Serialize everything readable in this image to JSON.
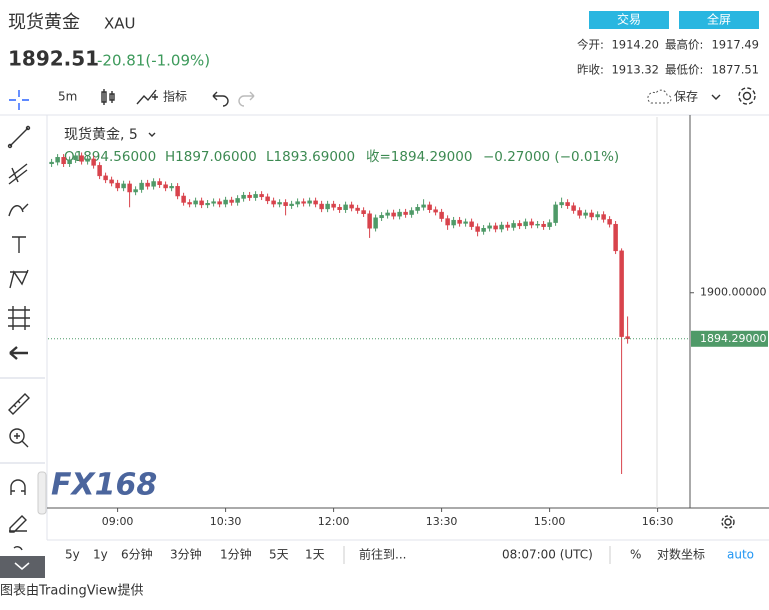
{
  "ui": {
    "title": "现货黄金",
    "symbol": "XAU",
    "price": "1892.51",
    "change": "-20.81(-1.09%)",
    "buttons": [
      "交易",
      "全屏"
    ],
    "stats": [
      [
        "今开:",
        "1914.20",
        "最高价:",
        "1917.49"
      ],
      [
        "昨收:",
        "1913.32",
        "最低价:",
        "1877.51"
      ]
    ],
    "toolbar": {
      "interval": "5m",
      "indicators": "指标",
      "save": "保存"
    },
    "legend": {
      "name": "现货黄金, 5",
      "ohlc": [
        "O1894.56000",
        "H1897.06000",
        "L1893.69000",
        "收=1894.29000",
        "−0.27000 (−0.01%)"
      ]
    },
    "ranges": [
      "5y",
      "1y",
      "6分钟",
      "3分钟",
      "1分钟",
      "5天",
      "1天"
    ],
    "goto": "前往到...",
    "clock": "08:07:00 (UTC)",
    "percent": "%",
    "log": "对数坐标",
    "auto": "auto",
    "watermark": "FX168",
    "footer": "图表由TradingView提供"
  },
  "chart_data": {
    "type": "candlestick",
    "up_color": "#4f9a68",
    "down_color": "#d8434c",
    "xlim": [
      482,
      1017
    ],
    "xticks": [
      {
        "value": 540,
        "label": "09:00"
      },
      {
        "value": 630,
        "label": "10:30"
      },
      {
        "value": 720,
        "label": "12:00"
      },
      {
        "value": 810,
        "label": "13:30"
      },
      {
        "value": 900,
        "label": "15:00"
      },
      {
        "value": 990,
        "label": "16:30"
      }
    ],
    "ylim": [
      1873.3,
      1921.8
    ],
    "yticks": [
      {
        "value": 1900,
        "label": "1900.00000"
      }
    ],
    "last_price": {
      "value": 1894.29,
      "label": "1894.29000"
    },
    "x": [
      485,
      490,
      495,
      500,
      505,
      510,
      515,
      520,
      525,
      530,
      535,
      540,
      545,
      550,
      555,
      560,
      565,
      570,
      575,
      580,
      585,
      590,
      595,
      600,
      605,
      610,
      615,
      620,
      625,
      630,
      635,
      640,
      645,
      650,
      655,
      660,
      665,
      670,
      675,
      680,
      685,
      690,
      695,
      700,
      705,
      710,
      715,
      720,
      725,
      730,
      735,
      740,
      745,
      750,
      755,
      760,
      765,
      770,
      775,
      780,
      785,
      790,
      795,
      800,
      805,
      810,
      815,
      820,
      825,
      830,
      835,
      840,
      845,
      850,
      855,
      860,
      865,
      870,
      875,
      880,
      885,
      890,
      895,
      900,
      905,
      910,
      915,
      920,
      925,
      930,
      935,
      940,
      945,
      950,
      955,
      960,
      965
    ],
    "open": [
      1916.0,
      1916.2,
      1916.8,
      1916.0,
      1916.5,
      1917.0,
      1916.3,
      1916.6,
      1915.8,
      1914.5,
      1914.0,
      1913.6,
      1913.0,
      1913.5,
      1912.5,
      1912.8,
      1913.6,
      1913.2,
      1913.8,
      1913.4,
      1913.0,
      1913.2,
      1912.0,
      1911.2,
      1911.0,
      1911.4,
      1910.9,
      1911.1,
      1911.3,
      1911.0,
      1911.5,
      1911.2,
      1911.7,
      1912.1,
      1911.8,
      1912.2,
      1911.9,
      1911.4,
      1911.0,
      1911.2,
      1910.8,
      1911.0,
      1911.3,
      1911.1,
      1911.4,
      1911.0,
      1910.4,
      1911.0,
      1910.6,
      1910.3,
      1910.9,
      1910.5,
      1910.2,
      1909.8,
      1908.0,
      1909.3,
      1909.6,
      1909.9,
      1909.5,
      1910.0,
      1909.7,
      1910.2,
      1910.6,
      1910.9,
      1910.3,
      1910.0,
      1909.2,
      1908.4,
      1909.0,
      1908.6,
      1908.8,
      1908.2,
      1907.6,
      1908.0,
      1908.3,
      1907.9,
      1908.4,
      1908.1,
      1908.6,
      1908.3,
      1908.8,
      1908.4,
      1908.5,
      1908.2,
      1908.7,
      1910.9,
      1911.2,
      1910.8,
      1910.2,
      1909.6,
      1909.9,
      1909.4,
      1909.7,
      1909.1,
      1908.5,
      1905.2,
      1894.56
    ],
    "high": [
      1916.6,
      1917.2,
      1917.2,
      1916.9,
      1917.4,
      1917.4,
      1917.0,
      1917.0,
      1916.2,
      1914.9,
      1914.4,
      1914.0,
      1913.9,
      1913.9,
      1913.2,
      1914.0,
      1914.0,
      1914.2,
      1914.2,
      1913.8,
      1913.6,
      1913.6,
      1912.4,
      1911.6,
      1911.8,
      1911.8,
      1911.5,
      1911.7,
      1911.7,
      1911.9,
      1911.9,
      1912.1,
      1912.5,
      1912.5,
      1912.6,
      1912.6,
      1912.3,
      1911.8,
      1911.6,
      1911.6,
      1911.4,
      1911.7,
      1911.7,
      1911.8,
      1911.8,
      1911.4,
      1911.4,
      1911.4,
      1911.0,
      1911.3,
      1911.3,
      1910.9,
      1910.6,
      1910.2,
      1909.7,
      1910.0,
      1910.3,
      1910.3,
      1910.4,
      1910.4,
      1910.6,
      1911.0,
      1911.6,
      1911.3,
      1910.7,
      1910.4,
      1909.6,
      1909.4,
      1909.4,
      1909.2,
      1909.2,
      1908.6,
      1908.4,
      1908.7,
      1908.7,
      1908.8,
      1908.8,
      1909.0,
      1909.0,
      1909.2,
      1909.2,
      1908.9,
      1908.9,
      1909.1,
      1911.3,
      1911.8,
      1911.6,
      1911.2,
      1910.6,
      1910.3,
      1910.3,
      1910.1,
      1910.1,
      1909.5,
      1908.9,
      1905.5,
      1897.06
    ],
    "low": [
      1915.6,
      1915.8,
      1915.6,
      1915.6,
      1916.1,
      1915.9,
      1915.9,
      1915.4,
      1914.1,
      1913.6,
      1913.2,
      1912.6,
      1912.6,
      1910.6,
      1912.1,
      1912.4,
      1912.8,
      1912.8,
      1913.0,
      1912.6,
      1912.6,
      1911.6,
      1910.8,
      1910.6,
      1910.6,
      1910.5,
      1910.5,
      1910.7,
      1910.6,
      1910.6,
      1910.8,
      1910.8,
      1911.3,
      1911.4,
      1911.4,
      1911.5,
      1911.0,
      1910.6,
      1910.6,
      1909.6,
      1910.4,
      1910.6,
      1910.7,
      1910.7,
      1910.6,
      1910.0,
      1910.0,
      1910.2,
      1909.9,
      1909.9,
      1910.1,
      1909.8,
      1909.4,
      1906.8,
      1907.6,
      1908.9,
      1909.2,
      1909.1,
      1909.1,
      1909.3,
      1909.3,
      1909.8,
      1910.2,
      1909.9,
      1909.6,
      1908.8,
      1907.8,
      1908.0,
      1908.2,
      1908.2,
      1907.8,
      1907.0,
      1907.2,
      1907.6,
      1907.5,
      1907.5,
      1907.7,
      1907.7,
      1907.9,
      1907.9,
      1908.0,
      1908.0,
      1907.8,
      1907.8,
      1908.3,
      1910.5,
      1910.4,
      1909.8,
      1909.2,
      1909.2,
      1909.0,
      1909.0,
      1908.7,
      1908.1,
      1904.8,
      1877.51,
      1893.69
    ],
    "close": [
      1916.2,
      1916.8,
      1916.0,
      1916.5,
      1917.0,
      1916.3,
      1916.6,
      1915.8,
      1914.5,
      1914.0,
      1913.6,
      1913.0,
      1913.5,
      1912.5,
      1912.8,
      1913.6,
      1913.2,
      1913.8,
      1913.4,
      1913.0,
      1913.2,
      1912.0,
      1911.2,
      1911.0,
      1911.4,
      1910.9,
      1911.1,
      1911.3,
      1911.0,
      1911.5,
      1911.2,
      1911.7,
      1912.1,
      1911.8,
      1912.2,
      1911.9,
      1911.4,
      1911.0,
      1911.2,
      1910.8,
      1911.0,
      1911.3,
      1911.1,
      1911.4,
      1911.0,
      1910.4,
      1911.0,
      1910.6,
      1910.3,
      1910.9,
      1910.5,
      1910.2,
      1909.8,
      1908.0,
      1909.3,
      1909.6,
      1909.9,
      1909.5,
      1910.0,
      1909.7,
      1910.2,
      1910.6,
      1910.9,
      1910.3,
      1910.0,
      1909.2,
      1908.4,
      1909.0,
      1908.6,
      1908.8,
      1908.2,
      1907.6,
      1908.0,
      1908.3,
      1907.9,
      1908.4,
      1908.1,
      1908.6,
      1908.3,
      1908.8,
      1908.4,
      1908.5,
      1908.2,
      1908.7,
      1910.9,
      1911.2,
      1910.8,
      1910.2,
      1909.6,
      1909.9,
      1909.4,
      1909.7,
      1909.1,
      1908.5,
      1905.2,
      1894.56,
      1894.29
    ]
  }
}
